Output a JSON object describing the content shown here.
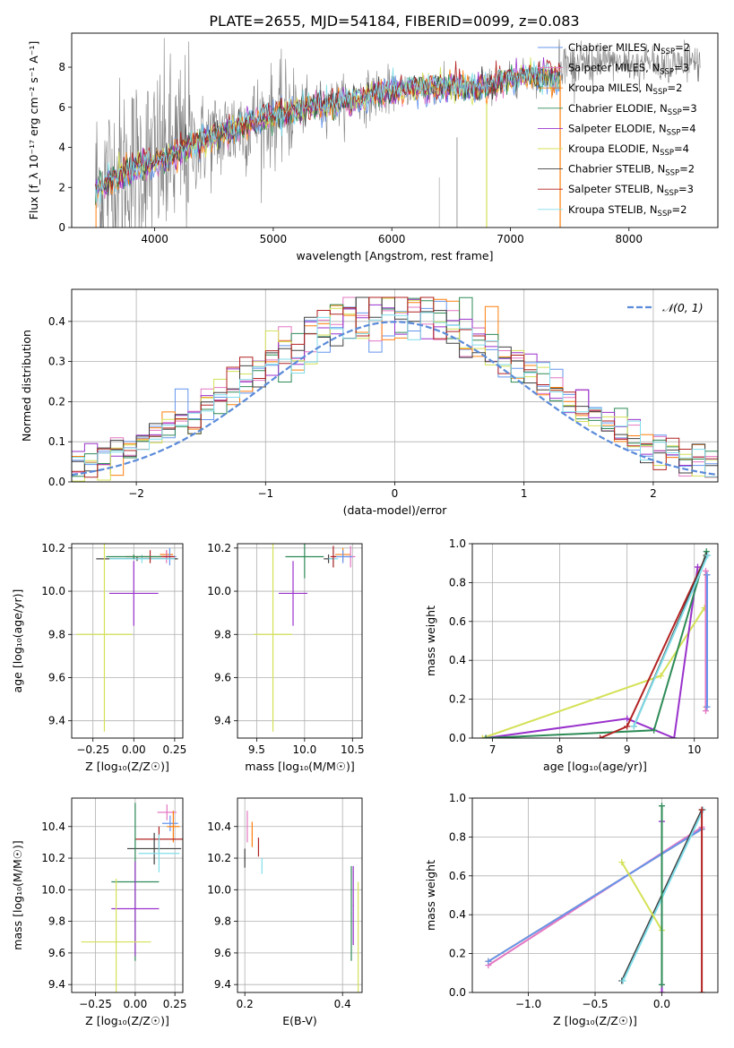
{
  "title": "PLATE=2655, MJD=54184, FIBERID=0099, z=0.083",
  "colors": {
    "ChabrierMILES": "#6495ed",
    "SalpeterMILES": "#e377c2",
    "KroupaMILES": "#ff7f0e",
    "ChabrierELODIE": "#2e8b57",
    "SalpeterELODIE": "#9932cc",
    "KroupaELODIE": "#d4e157",
    "ChabrierSTELIB": "#404040",
    "SalpeterSTELIB": "#b22222",
    "KroupaSTELIB": "#80deea",
    "data": "#808080",
    "normal": "#5b8bd9"
  },
  "chart_data": [
    {
      "type": "line",
      "id": "spectrum",
      "xlabel": "wavelength [Angstrom, rest frame]",
      "ylabel": "Flux [f_λ 10⁻¹⁷ erg cm⁻² s⁻¹ A⁻¹]",
      "xlim": [
        3300,
        8750
      ],
      "ylim": [
        0,
        9.7
      ],
      "xticks": [
        4000,
        5000,
        6000,
        7000,
        8000
      ],
      "yticks": [
        0,
        2,
        4,
        6,
        8
      ],
      "legend_position": "top-right",
      "legend": [
        {
          "base": "Chabrier MILES, N",
          "sub": "SSP",
          "tail": "=2",
          "color": "ChabrierMILES"
        },
        {
          "base": "Salpeter MILES, N",
          "sub": "SSP",
          "tail": "=3",
          "color": "SalpeterMILES"
        },
        {
          "base": "Kroupa MILES, N",
          "sub": "SSP",
          "tail": "=2",
          "color": "KroupaMILES"
        },
        {
          "base": "Chabrier ELODIE, N",
          "sub": "SSP",
          "tail": "=3",
          "color": "ChabrierELODIE"
        },
        {
          "base": "Salpeter ELODIE, N",
          "sub": "SSP",
          "tail": "=4",
          "color": "SalpeterELODIE"
        },
        {
          "base": "Kroupa ELODIE, N",
          "sub": "SSP",
          "tail": "=4",
          "color": "KroupaELODIE"
        },
        {
          "base": "Chabrier STELIB, N",
          "sub": "SSP",
          "tail": "=2",
          "color": "ChabrierSTELIB"
        },
        {
          "base": "Salpeter STELIB, N",
          "sub": "SSP",
          "tail": "=3",
          "color": "SalpeterSTELIB"
        },
        {
          "base": "Kroupa STELIB, N",
          "sub": "SSP",
          "tail": "=2",
          "color": "KroupaSTELIB"
        }
      ],
      "continuum": {
        "x": [
          3500,
          3700,
          3900,
          4100,
          4300,
          4500,
          4700,
          4900,
          5100,
          5300,
          5500,
          5700,
          5900,
          6100,
          6300,
          6500,
          6700,
          6900,
          7100,
          7300,
          7400
        ],
        "y": [
          1.9,
          2.6,
          3.1,
          3.5,
          4.1,
          4.5,
          5.0,
          5.4,
          5.7,
          6.0,
          6.2,
          6.4,
          6.7,
          6.9,
          7.0,
          7.0,
          6.9,
          7.2,
          7.5,
          7.6,
          7.4
        ]
      }
    },
    {
      "type": "line",
      "id": "residual-histogram",
      "xlabel": "(data-model)/error",
      "ylabel": "Normed distribution",
      "xlim": [
        -2.5,
        2.5
      ],
      "ylim": [
        0,
        0.48
      ],
      "xticks": [
        -2,
        -1,
        0,
        1,
        2
      ],
      "yticks": [
        0.0,
        0.1,
        0.2,
        0.3,
        0.4
      ],
      "legend_position": "top-right",
      "normal_label": "𝒩(0, 1)",
      "bins": 50
    },
    {
      "type": "scatter",
      "id": "age-vs-Z",
      "xlabel": "Z [log₁₀(Z/Z☉)]",
      "ylabel": "age  [log₁₀(age/yr)]",
      "xlim": [
        -0.38,
        0.3
      ],
      "ylim": [
        9.32,
        10.22
      ],
      "xticks": [
        -0.25,
        0.0,
        0.25
      ],
      "yticks": [
        9.4,
        9.6,
        9.8,
        10.0,
        10.2
      ],
      "points": [
        {
          "x": 0.2,
          "y": 10.17,
          "xerr": 0.04,
          "yerr": 0.02,
          "c": "KroupaMILES"
        },
        {
          "x": 0.2,
          "y": 10.16,
          "xerr": 0.04,
          "yerr": 0.03,
          "c": "SalpeterMILES"
        },
        {
          "x": 0.22,
          "y": 10.16,
          "xerr": 0.04,
          "yerr": 0.04,
          "c": "ChabrierMILES"
        },
        {
          "x": 0.02,
          "y": 10.15,
          "xerr": 0.25,
          "yerr": 0.01,
          "c": "ChabrierSTELIB"
        },
        {
          "x": 0.05,
          "y": 10.15,
          "xerr": 0.2,
          "yerr": 0.02,
          "c": "KroupaSTELIB"
        },
        {
          "x": 0.1,
          "y": 10.16,
          "xerr": 0.15,
          "yerr": 0.03,
          "c": "SalpeterSTELIB"
        },
        {
          "x": 0.0,
          "y": 10.16,
          "xerr": 0.17,
          "yerr": 0.01,
          "c": "ChabrierELODIE"
        },
        {
          "x": 0.0,
          "y": 9.99,
          "xerr": 0.15,
          "yerr": 0.15,
          "c": "SalpeterELODIE"
        },
        {
          "x": -0.18,
          "y": 9.8,
          "xerr": 0.17,
          "yerr": 0.45,
          "c": "KroupaELODIE"
        }
      ]
    },
    {
      "type": "scatter",
      "id": "age-vs-mass",
      "xlabel": "mass [log₁₀(M/M☉)]",
      "ylabel": "",
      "xlim": [
        9.3,
        10.6
      ],
      "ylim": [
        9.32,
        10.22
      ],
      "xticks": [
        9.5,
        10.0,
        10.5
      ],
      "yticks": [
        9.4,
        9.6,
        9.8,
        10.0,
        10.2
      ],
      "points": [
        {
          "x": 10.4,
          "y": 10.17,
          "xerr": 0.08,
          "yerr": 0.03,
          "c": "KroupaMILES"
        },
        {
          "x": 10.48,
          "y": 10.16,
          "xerr": 0.05,
          "yerr": 0.05,
          "c": "SalpeterMILES"
        },
        {
          "x": 10.4,
          "y": 10.16,
          "xerr": 0.1,
          "yerr": 0.03,
          "c": "ChabrierMILES"
        },
        {
          "x": 10.25,
          "y": 10.15,
          "xerr": 0.05,
          "yerr": 0.02,
          "c": "ChabrierSTELIB"
        },
        {
          "x": 10.3,
          "y": 10.15,
          "xerr": 0.05,
          "yerr": 0.04,
          "c": "KroupaSTELIB"
        },
        {
          "x": 10.3,
          "y": 10.16,
          "xerr": 0.03,
          "yerr": 0.05,
          "c": "SalpeterSTELIB"
        },
        {
          "x": 10.0,
          "y": 10.16,
          "xerr": 0.2,
          "yerr": 0.1,
          "c": "ChabrierELODIE"
        },
        {
          "x": 9.88,
          "y": 9.99,
          "xerr": 0.15,
          "yerr": 0.15,
          "c": "SalpeterELODIE"
        },
        {
          "x": 9.67,
          "y": 9.8,
          "xerr": 0.2,
          "yerr": 0.45,
          "c": "KroupaELODIE"
        }
      ]
    },
    {
      "type": "line",
      "id": "mass-weight-vs-age",
      "xlabel": "age  [log₁₀(age/yr)]",
      "ylabel": "mass weight",
      "xlim": [
        6.7,
        10.35
      ],
      "ylim": [
        0,
        1
      ],
      "xticks": [
        7,
        8,
        9,
        10
      ],
      "yticks": [
        0.0,
        0.2,
        0.4,
        0.6,
        0.8,
        1.0
      ],
      "series": [
        {
          "c": "KroupaELODIE",
          "x": [
            6.85,
            9.5,
            10.15
          ],
          "y": [
            0.0,
            0.32,
            0.67
          ]
        },
        {
          "c": "SalpeterELODIE",
          "x": [
            6.9,
            9.0,
            9.7,
            10.05
          ],
          "y": [
            0.0,
            0.1,
            0.0,
            0.88
          ]
        },
        {
          "c": "ChabrierELODIE",
          "x": [
            6.9,
            9.4,
            10.18
          ],
          "y": [
            0.0,
            0.04,
            0.96
          ]
        },
        {
          "c": "SalpeterSTELIB",
          "x": [
            8.6,
            9.0,
            10.18
          ],
          "y": [
            0.0,
            0.06,
            0.94
          ]
        },
        {
          "c": "ChabrierSTELIB",
          "x": [
            9.1,
            10.18
          ],
          "y": [
            0.06,
            0.94
          ]
        },
        {
          "c": "KroupaSTELIB",
          "x": [
            9.1,
            10.2
          ],
          "y": [
            0.06,
            0.94
          ]
        },
        {
          "c": "KroupaMILES",
          "x": [
            10.18,
            10.18
          ],
          "y": [
            0.16,
            0.84
          ]
        },
        {
          "c": "SalpeterMILES",
          "x": [
            10.17,
            10.17
          ],
          "y": [
            0.14,
            0.86
          ]
        },
        {
          "c": "ChabrierMILES",
          "x": [
            10.19,
            10.19
          ],
          "y": [
            0.16,
            0.84
          ]
        }
      ]
    },
    {
      "type": "scatter",
      "id": "mass-vs-Z",
      "xlabel": "Z [log₁₀(Z/Z☉)]",
      "ylabel": "mass [log₁₀(M/M☉)]",
      "xlim": [
        -0.4,
        0.3
      ],
      "ylim": [
        9.35,
        10.58
      ],
      "xticks": [
        -0.25,
        0.0,
        0.25
      ],
      "yticks": [
        9.4,
        9.6,
        9.8,
        10.0,
        10.2,
        10.4
      ],
      "points": [
        {
          "x": 0.2,
          "y": 10.49,
          "xerr": 0.06,
          "yerr": 0.05,
          "c": "SalpeterMILES"
        },
        {
          "x": 0.22,
          "y": 10.42,
          "xerr": 0.05,
          "yerr": 0.05,
          "c": "ChabrierMILES"
        },
        {
          "x": 0.24,
          "y": 10.4,
          "xerr": 0.04,
          "yerr": 0.1,
          "c": "KroupaMILES"
        },
        {
          "x": 0.15,
          "y": 10.32,
          "xerr": 0.15,
          "yerr": 0.08,
          "c": "SalpeterSTELIB"
        },
        {
          "x": 0.12,
          "y": 10.26,
          "xerr": 0.17,
          "yerr": 0.1,
          "c": "ChabrierSTELIB"
        },
        {
          "x": 0.15,
          "y": 10.23,
          "xerr": 0.13,
          "yerr": 0.12,
          "c": "KroupaSTELIB"
        },
        {
          "x": 0.0,
          "y": 10.05,
          "xerr": 0.15,
          "yerr": 0.5,
          "c": "ChabrierELODIE"
        },
        {
          "x": 0.0,
          "y": 9.88,
          "xerr": 0.15,
          "yerr": 0.3,
          "c": "SalpeterELODIE"
        },
        {
          "x": -0.12,
          "y": 9.67,
          "xerr": 0.22,
          "yerr": 0.4,
          "c": "KroupaELODIE"
        }
      ]
    },
    {
      "type": "scatter",
      "id": "mass-vs-EBV",
      "xlabel": "E(B-V)",
      "ylabel": "",
      "xlim": [
        0.185,
        0.44
      ],
      "ylim": [
        9.35,
        10.58
      ],
      "xticks": [
        0.2,
        0.4
      ],
      "yticks": [
        9.4,
        9.6,
        9.8,
        10.0,
        10.2,
        10.4
      ],
      "points": [
        {
          "x": 0.205,
          "y": 10.4,
          "xerr": 0.001,
          "yerr": 0.1,
          "c": "SalpeterMILES"
        },
        {
          "x": 0.215,
          "y": 10.35,
          "xerr": 0.001,
          "yerr": 0.08,
          "c": "KroupaMILES"
        },
        {
          "x": 0.2,
          "y": 10.2,
          "xerr": 0.001,
          "yerr": 0.06,
          "c": "ChabrierSTELIB"
        },
        {
          "x": 0.228,
          "y": 10.27,
          "xerr": 0.001,
          "yerr": 0.06,
          "c": "SalpeterSTELIB"
        },
        {
          "x": 0.235,
          "y": 10.15,
          "xerr": 0.001,
          "yerr": 0.05,
          "c": "KroupaSTELIB"
        },
        {
          "x": 0.418,
          "y": 9.85,
          "xerr": 0.001,
          "yerr": 0.3,
          "c": "ChabrierELODIE"
        },
        {
          "x": 0.422,
          "y": 9.9,
          "xerr": 0.001,
          "yerr": 0.25,
          "c": "SalpeterELODIE"
        },
        {
          "x": 0.432,
          "y": 9.7,
          "xerr": 0.001,
          "yerr": 0.35,
          "c": "KroupaELODIE"
        }
      ]
    },
    {
      "type": "line",
      "id": "mass-weight-vs-Z",
      "xlabel": "Z [log₁₀(Z/Z☉)]",
      "ylabel": "mass weight",
      "xlim": [
        -1.42,
        0.42
      ],
      "ylim": [
        0,
        1
      ],
      "xticks": [
        -1.0,
        -0.5,
        0.0
      ],
      "yticks": [
        0.0,
        0.2,
        0.4,
        0.6,
        0.8,
        1.0
      ],
      "series": [
        {
          "c": "KroupaMILES",
          "x": [
            -1.3,
            0.3
          ],
          "y": [
            0.16,
            0.84
          ]
        },
        {
          "c": "SalpeterMILES",
          "x": [
            -1.3,
            0.3
          ],
          "y": [
            0.14,
            0.85
          ]
        },
        {
          "c": "ChabrierMILES",
          "x": [
            -1.3,
            0.3
          ],
          "y": [
            0.16,
            0.84
          ]
        },
        {
          "c": "ChabrierSTELIB",
          "x": [
            -0.3,
            0.3
          ],
          "y": [
            0.06,
            0.94
          ]
        },
        {
          "c": "KroupaSTELIB",
          "x": [
            -0.29,
            0.31
          ],
          "y": [
            0.06,
            0.94
          ]
        },
        {
          "c": "KroupaELODIE",
          "x": [
            -0.3,
            0.0,
            0.0
          ],
          "y": [
            0.67,
            0.32,
            0.0
          ]
        },
        {
          "c": "SalpeterELODIE",
          "x": [
            0.0,
            0.0
          ],
          "y": [
            0.0,
            0.88
          ]
        },
        {
          "c": "ChabrierELODIE",
          "x": [
            0.0,
            0.0
          ],
          "y": [
            0.04,
            0.96
          ]
        },
        {
          "c": "SalpeterSTELIB",
          "x": [
            0.3,
            0.3
          ],
          "y": [
            0.0,
            0.94
          ]
        }
      ]
    }
  ]
}
